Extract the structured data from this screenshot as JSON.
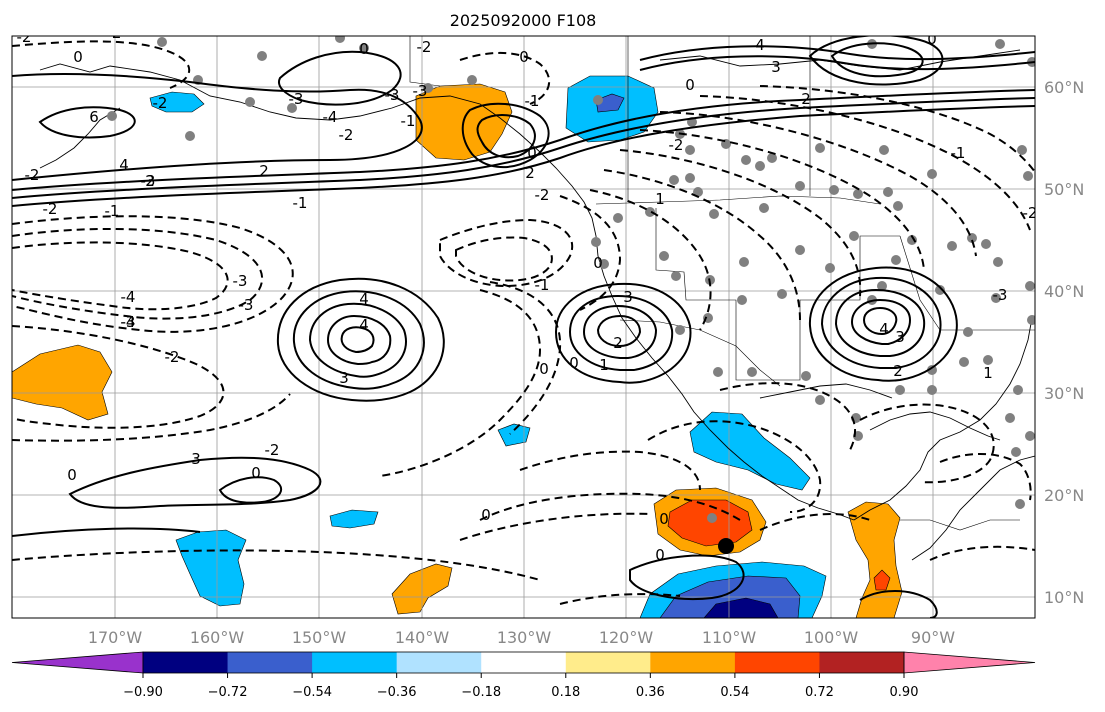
{
  "title": "2025092000 F108",
  "lat_labels": [
    "60°N",
    "50°N",
    "40°N",
    "30°N",
    "20°N",
    "10°N"
  ],
  "lon_labels": [
    "170°W",
    "160°W",
    "150°W",
    "140°W",
    "130°W",
    "120°W",
    "110°W",
    "100°W",
    "90°W"
  ],
  "colorbar": {
    "ticks": [
      "−0.90",
      "−0.72",
      "−0.54",
      "−0.36",
      "−0.18",
      "0.18",
      "0.36",
      "0.54",
      "0.72",
      "0.90"
    ],
    "colors": [
      "#9932cc",
      "#000080",
      "#3a5fcd",
      "#00bfff",
      "#b0e2ff",
      "#ffffff",
      "#ffec8b",
      "#ffa500",
      "#ff4500",
      "#b22222",
      "#ff82ab"
    ]
  },
  "contour_labels": [
    "0",
    "6",
    "4",
    "2",
    "-2",
    "-1",
    "0",
    "-4",
    "-3",
    "-2",
    "-2",
    "-2",
    "4",
    "3",
    "-1",
    "0",
    "-2",
    "-3",
    "-4",
    "-3",
    "-2",
    "0",
    "-1",
    "0",
    "2",
    "-3",
    "-2",
    "2",
    "-3",
    "4",
    "3",
    "0",
    "-2",
    "-3",
    "-2",
    "-4",
    "-3",
    "-2",
    "-1",
    "0",
    "0",
    "1",
    "2",
    "3",
    "0",
    "-1",
    "0",
    "0",
    "-2",
    "1",
    "2",
    "3",
    "4",
    "0",
    "-1",
    "-2",
    "-3",
    "4",
    "3",
    "2",
    "1",
    "0",
    "0"
  ],
  "colors": {
    "orange": "#ffa500",
    "red": "#ff4500",
    "sky": "#00bfff",
    "royal": "#3a5fcd",
    "navy": "#000080",
    "station": "#808080"
  }
}
